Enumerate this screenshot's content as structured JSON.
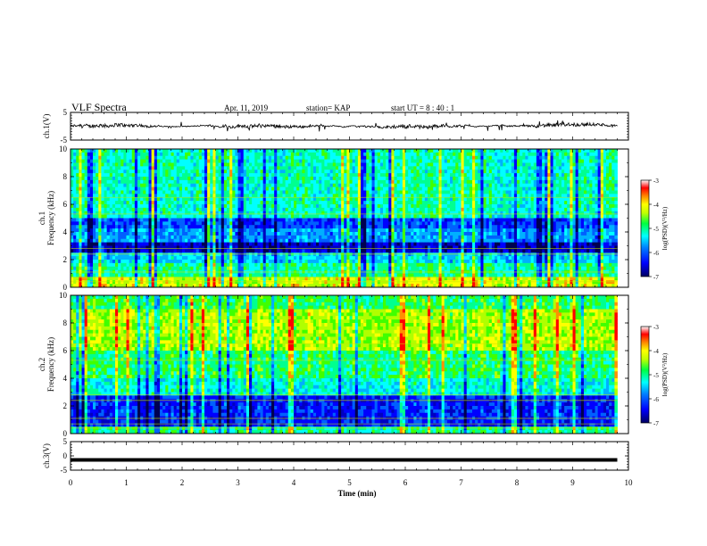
{
  "header": {
    "title": "VLF Spectra",
    "date": "Apr. 11, 2019",
    "station": "station= KAP",
    "start": "start  UT =   8  : 40 : 1"
  },
  "colorbar": {
    "label": "log(PSD)(V²/Hz)",
    "ticks": [
      "-3",
      "-4",
      "-5",
      "-6",
      "-7"
    ],
    "colors": [
      "#000080",
      "#0000ff",
      "#0080ff",
      "#00ffff",
      "#00ff80",
      "#80ff00",
      "#ffff00",
      "#ff8000",
      "#ff0000",
      "#ffffff"
    ]
  },
  "chart_data": [
    {
      "type": "line",
      "name": "ch1-waveform",
      "ylabel": "ch.1(V)",
      "ylim": [
        -5,
        5
      ],
      "yticks": [
        "5",
        "-5"
      ],
      "xlim": [
        0,
        10
      ],
      "description_values": "noisy waveform centered near 0 V, amplitude roughly ±1 V"
    },
    {
      "type": "heatmap",
      "name": "ch1-spectrogram",
      "ylabel": "ch.1\nFrequency (kHz)",
      "ylim": [
        0,
        10
      ],
      "yticks": [
        "0",
        "2",
        "4",
        "6",
        "8",
        "10"
      ],
      "xlim": [
        0,
        9.8
      ]
    },
    {
      "type": "heatmap",
      "name": "ch2-spectrogram",
      "ylabel": "ch.2\nFrequency (kHz)",
      "ylim": [
        0,
        10
      ],
      "yticks": [
        "0",
        "2",
        "4",
        "6",
        "8",
        "10"
      ],
      "xlim": [
        0,
        9.8
      ]
    },
    {
      "type": "line",
      "name": "ch3-waveform",
      "ylabel": "ch.3(V)",
      "ylim": [
        -5,
        5
      ],
      "yticks": [
        "5",
        "0",
        "-5"
      ],
      "constant_value": -1.4,
      "xlim": [
        0,
        9.8
      ]
    }
  ],
  "xaxis": {
    "label": "Time  (min)",
    "ticks": [
      "0",
      "1",
      "2",
      "3",
      "4",
      "5",
      "6",
      "7",
      "8",
      "9",
      "10"
    ],
    "range": [
      0,
      10
    ]
  }
}
